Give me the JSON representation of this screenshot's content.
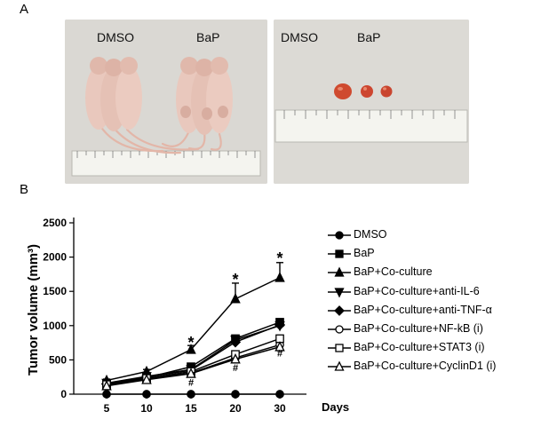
{
  "panels": {
    "a_letter": "A",
    "b_letter": "B"
  },
  "photo_left": {
    "label_left": "DMSO",
    "label_right": "BaP"
  },
  "photo_right": {
    "label_left": "DMSO",
    "label_right": "BaP"
  },
  "colors": {
    "photo_bg": "#d9d7d2",
    "mouse": "#e9c8bd",
    "mouse_shade": "#d8ada0",
    "tumor": "#cf4a2f",
    "ruler": "#f4f4ef",
    "line": "#000000"
  },
  "chart_data": {
    "type": "line",
    "ylabel": "Tumor volume (mm³)",
    "xlabel": "Days",
    "categories": [
      "5",
      "10",
      "15",
      "20",
      "30"
    ],
    "ylim": [
      0,
      2500
    ],
    "yticks": [
      0,
      500,
      1000,
      1500,
      2000,
      2500
    ],
    "series": [
      {
        "name": "DMSO",
        "marker": "circle-filled",
        "values": [
          0,
          0,
          0,
          0,
          0
        ]
      },
      {
        "name": "BaP",
        "marker": "square-filled",
        "values": [
          140,
          240,
          400,
          810,
          1050
        ]
      },
      {
        "name": "BaP+Co-culture",
        "marker": "triangle-up-filled",
        "values": [
          200,
          330,
          650,
          1390,
          1700
        ],
        "errors": [
          20,
          30,
          60,
          230,
          220
        ]
      },
      {
        "name": "BaP+Co-culture+anti-IL-6",
        "marker": "triangle-down-filled",
        "values": [
          160,
          260,
          360,
          790,
          1000
        ]
      },
      {
        "name": "BaP+Co-culture+anti-TNF-α",
        "marker": "diamond-filled",
        "values": [
          150,
          250,
          350,
          760,
          1010
        ]
      },
      {
        "name": "BaP+Co-culture+NF-kB (i)",
        "marker": "circle-open",
        "values": [
          130,
          220,
          310,
          530,
          720
        ]
      },
      {
        "name": "BaP+Co-culture+STAT3 (i)",
        "marker": "square-open",
        "values": [
          140,
          230,
          330,
          580,
          810
        ]
      },
      {
        "name": "BaP+Co-culture+CyclinD1 (i)",
        "marker": "triangle-up-open",
        "values": [
          120,
          210,
          300,
          510,
          690
        ]
      }
    ],
    "annotations": [
      {
        "text": "*",
        "category": "15",
        "y": 780
      },
      {
        "text": "*",
        "category": "20",
        "y": 1700
      },
      {
        "text": "*",
        "category": "30",
        "y": 2010
      },
      {
        "text": "#",
        "category": "15",
        "y": 120
      },
      {
        "text": "#",
        "category": "20",
        "y": 340
      },
      {
        "text": "#",
        "category": "30",
        "y": 550
      }
    ]
  }
}
